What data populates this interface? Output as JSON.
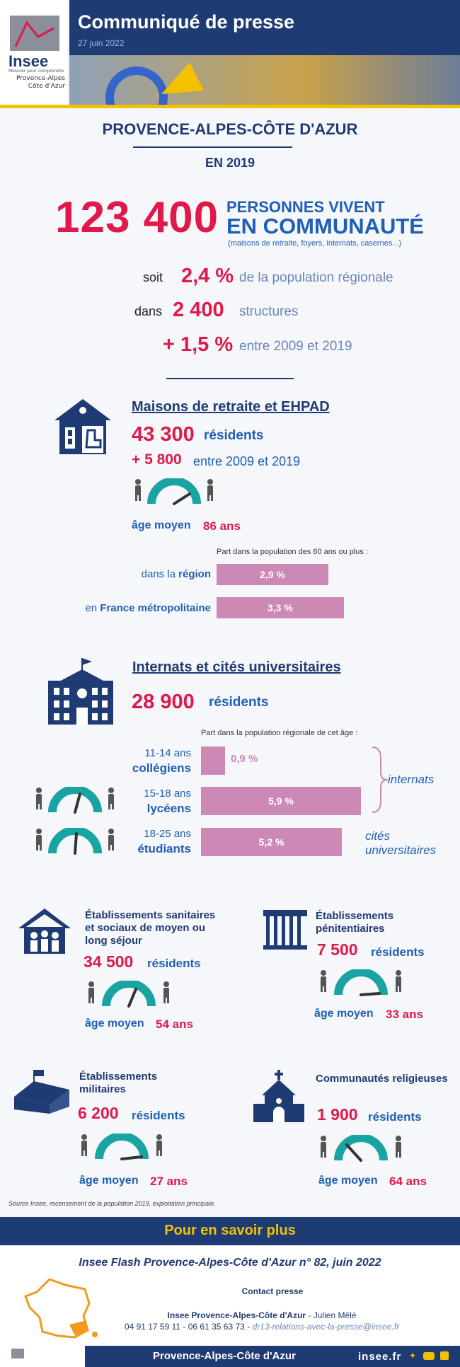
{
  "header": {
    "title": "Communiqué de presse",
    "date": "27 juin 2022",
    "logo": {
      "name": "Insee",
      "tagline": "Mesurer pour comprendre",
      "region": "Provence-Alpes Côte d'Azur"
    }
  },
  "headline": {
    "region": "PROVENCE-ALPES-CÔTE D'AZUR",
    "year": "EN 2019",
    "big_number": "123 400",
    "line1": "PERSONNES VIVENT",
    "line2": "EN COMMUNAUTÉ",
    "detail": "(maisons de retraite, foyers, internats, casernes...)"
  },
  "stats": [
    {
      "prefix": "soit",
      "value": "2,4 %",
      "text": "de la population régionale"
    },
    {
      "prefix": "dans",
      "value": "2 400",
      "text": "structures"
    },
    {
      "prefix": "",
      "value": "+ 1,5 %",
      "text": "entre 2009 et 2019"
    }
  ],
  "retraite": {
    "title": "Maisons de retraite et EHPAD",
    "residents_value": "43 300",
    "residents_label": "résidents",
    "growth_value": "+ 5 800",
    "growth_text": "entre 2009 et 2019",
    "age_label": "âge moyen",
    "age_value": "86 ans",
    "share_caption": "Part dans la population des 60 ans ou plus :",
    "bars": [
      {
        "label_a": "dans la ",
        "label_b": "région",
        "value": "2,9 %",
        "share": 2.9
      },
      {
        "label_a": "en ",
        "label_b": "France métropolitaine",
        "value": "3,3 %",
        "share": 3.3
      }
    ]
  },
  "internats": {
    "title": "Internats et cités universitaires",
    "residents_value": "28 900",
    "residents_label": "résidents",
    "share_caption": "Part dans la population régionale de cet âge :",
    "rows": [
      {
        "age": "11-14 ans",
        "group": "collégiens",
        "value": "0,9 %",
        "share": 0.9
      },
      {
        "age": "15-18 ans",
        "group": "lycéens",
        "value": "5,9 %",
        "share": 5.9
      },
      {
        "age": "18-25 ans",
        "group": "étudiants",
        "value": "5,2 %",
        "share": 5.2
      }
    ],
    "brace_internats": "internats",
    "brace_cites": "cités universitaires"
  },
  "sanitaires": {
    "title": "Établissements sanitaires et sociaux de moyen ou long séjour",
    "residents_value": "34 500",
    "residents_label": "résidents",
    "age_label": "âge moyen",
    "age_value": "54 ans"
  },
  "penitentiaires": {
    "title": "Établissements pénitentiaires",
    "residents_value": "7 500",
    "residents_label": "résidents",
    "age_label": "âge moyen",
    "age_value": "33 ans"
  },
  "militaires": {
    "title": "Établissements militaires",
    "residents_value": "6 200",
    "residents_label": "résidents",
    "age_label": "âge moyen",
    "age_value": "27 ans"
  },
  "religieuses": {
    "title": "Communautés religieuses",
    "residents_value": "1 900",
    "residents_label": "résidents",
    "age_label": "âge moyen",
    "age_value": "64 ans"
  },
  "source": "Source Insee, recensement de la population 2019, exploitation principale.",
  "footer": {
    "more": "Pour en savoir plus",
    "publication": "Insee Flash Provence-Alpes-Côte d'Azur n° 82, juin 2022",
    "contact_title": "Contact presse",
    "contact_org": "Insee  Provence-Alpes-Côte d'Azur",
    "contact_person": " - Julien Mêlé",
    "phones": "04 91 17 59 11 - 06 61 35 63 73 - ",
    "email": "dr13-relations-avec-la-presse@insee.fr",
    "bottom_region": "Provence-Alpes-Côte d'Azur",
    "site": "insee.fr"
  },
  "colors": {
    "red": "#e0194b",
    "blue": "#1f5fb5",
    "navy": "#1f3b73",
    "bar": "#cc89b5",
    "teal": "#1aa3a3"
  }
}
